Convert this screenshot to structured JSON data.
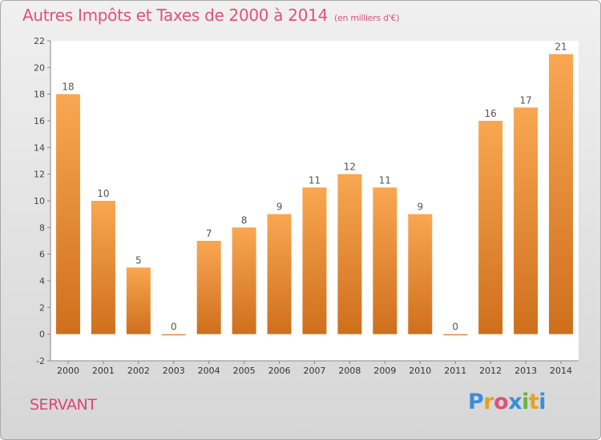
{
  "title": "Autres Impôts et Taxes de 2000 à 2014",
  "unit_label": "(en milliers d'€)",
  "commune": "SERVANT",
  "logo": {
    "text": "Proxiti",
    "letters": [
      "P",
      "r",
      "o",
      "x",
      "i",
      "t",
      "i"
    ],
    "colors": [
      "#3a8fd6",
      "#e8a020",
      "#e0527a",
      "#3a8fd6",
      "#6bb33a",
      "#e8a020",
      "#3a8fd6"
    ]
  },
  "chart_data": {
    "type": "bar",
    "categories": [
      "2000",
      "2001",
      "2002",
      "2003",
      "2004",
      "2005",
      "2006",
      "2007",
      "2008",
      "2009",
      "2010",
      "2011",
      "2012",
      "2013",
      "2014"
    ],
    "values": [
      18,
      10,
      5,
      0,
      7,
      8,
      9,
      11,
      12,
      11,
      9,
      0,
      16,
      17,
      21
    ],
    "title": "Autres Impôts et Taxes de 2000 à 2014",
    "xlabel": "",
    "ylabel": "",
    "ylim": [
      -2,
      22
    ],
    "yticks": [
      -2,
      0,
      2,
      4,
      6,
      8,
      10,
      12,
      14,
      16,
      18,
      20,
      22
    ],
    "grid": false,
    "bar_color": "#f0983c",
    "label_color": "#555555"
  }
}
